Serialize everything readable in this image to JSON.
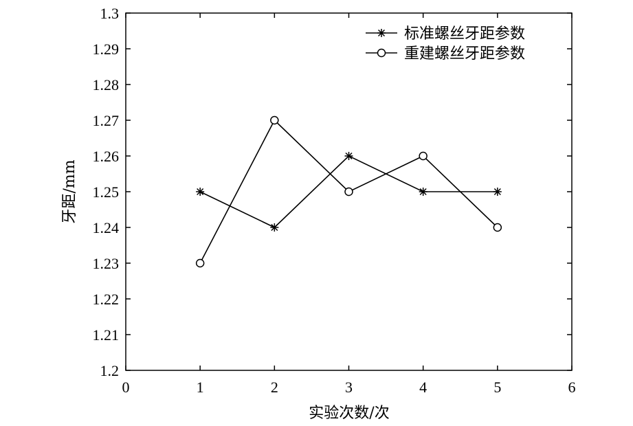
{
  "chart_data": {
    "type": "line",
    "xlabel": "实验次数/次",
    "ylabel": "牙距/mm",
    "xlim": [
      0,
      6
    ],
    "ylim": [
      1.2,
      1.3
    ],
    "xticks": [
      "0",
      "1",
      "2",
      "3",
      "4",
      "5",
      "6"
    ],
    "yticks": [
      "1.2",
      "1.21",
      "1.22",
      "1.23",
      "1.24",
      "1.25",
      "1.26",
      "1.27",
      "1.28",
      "1.29",
      "1.3"
    ],
    "grid": false,
    "legend_position": "top-right",
    "series": [
      {
        "name": "标准螺丝牙距参数",
        "marker": "asterisk",
        "color": "#000000",
        "x": [
          1,
          2,
          3,
          4,
          5
        ],
        "values": [
          1.25,
          1.24,
          1.26,
          1.25,
          1.25
        ]
      },
      {
        "name": "重建螺丝牙距参数",
        "marker": "circle",
        "color": "#000000",
        "x": [
          1,
          2,
          3,
          4,
          5
        ],
        "values": [
          1.23,
          1.27,
          1.25,
          1.26,
          1.24
        ]
      }
    ]
  }
}
